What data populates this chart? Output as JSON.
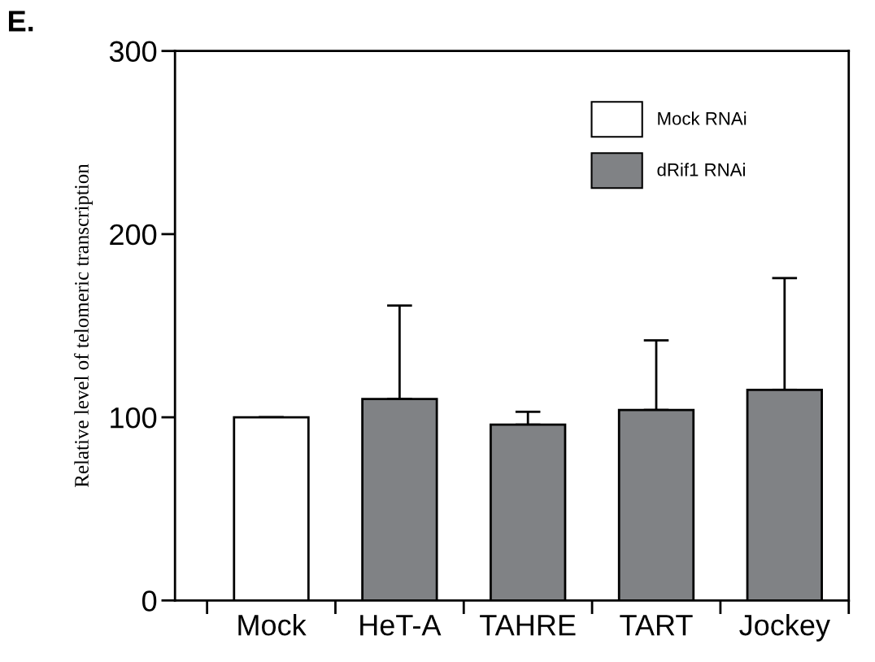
{
  "chart_data": {
    "type": "bar",
    "ylabel": "Relative level of telomeric transcription",
    "annotations": [
      "E."
    ],
    "categories": [
      "Mock",
      "HeT-A",
      "TAHRE",
      "TART",
      "Jockey"
    ],
    "series": [
      {
        "name": "Mock RNAi",
        "color": "#ffffff",
        "values": [
          100,
          null,
          null,
          null,
          null
        ],
        "errors": [
          [
            100,
            100
          ],
          null,
          null,
          null,
          null
        ]
      },
      {
        "name": "dRif1 RNAi",
        "color": "#808285",
        "values": [
          null,
          110,
          96,
          104,
          115
        ],
        "errors": [
          null,
          [
            110,
            161
          ],
          [
            96,
            103
          ],
          [
            104,
            142
          ],
          [
            115,
            176
          ]
        ]
      }
    ],
    "ylim": [
      0,
      300
    ],
    "yticks": [
      0,
      100,
      200,
      300
    ],
    "grid": false,
    "legend": "top right"
  }
}
